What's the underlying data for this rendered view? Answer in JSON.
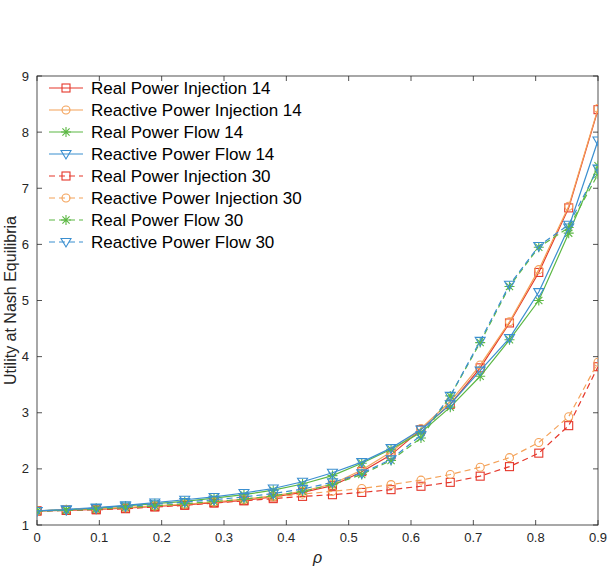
{
  "chart_data": {
    "type": "line",
    "x_label": "ρ",
    "y_label": "Utility at Nash Equilibria",
    "x": [
      0,
      0.047,
      0.095,
      0.142,
      0.189,
      0.237,
      0.284,
      0.332,
      0.379,
      0.426,
      0.474,
      0.521,
      0.568,
      0.616,
      0.663,
      0.711,
      0.758,
      0.805,
      0.853,
      0.9
    ],
    "xlim": [
      0,
      0.9
    ],
    "xticks": [
      0,
      0.1,
      0.2,
      0.3,
      0.4,
      0.5,
      0.6,
      0.7,
      0.8,
      0.9
    ],
    "ylim": [
      1,
      9
    ],
    "yticks": [
      1,
      2,
      3,
      4,
      5,
      6,
      7,
      8,
      9
    ],
    "grid": false,
    "legend": "top-left",
    "series": [
      {
        "name": "Real Power Injection 14",
        "color": "#e5372b",
        "marker": "square",
        "line_style": "solid",
        "values": [
          1.25,
          1.26,
          1.28,
          1.3,
          1.33,
          1.36,
          1.4,
          1.44,
          1.5,
          1.58,
          1.7,
          1.95,
          2.25,
          2.7,
          3.15,
          3.8,
          4.6,
          5.5,
          6.65,
          8.4
        ]
      },
      {
        "name": "Reactive Power Injection 14",
        "color": "#f4a259",
        "marker": "circle",
        "line_style": "solid",
        "values": [
          1.25,
          1.27,
          1.29,
          1.31,
          1.34,
          1.37,
          1.41,
          1.46,
          1.52,
          1.6,
          1.73,
          1.98,
          2.3,
          2.72,
          3.2,
          3.85,
          4.62,
          5.55,
          6.68,
          8.42
        ]
      },
      {
        "name": "Real Power Flow 14",
        "color": "#5cb844",
        "marker": "star",
        "line_style": "solid",
        "values": [
          1.25,
          1.27,
          1.3,
          1.34,
          1.38,
          1.42,
          1.48,
          1.54,
          1.62,
          1.73,
          1.88,
          2.1,
          2.35,
          2.65,
          3.1,
          3.65,
          4.3,
          5.0,
          6.2,
          7.4
        ]
      },
      {
        "name": "Reactive Power Flow 14",
        "color": "#3b8fd0",
        "marker": "triangle",
        "line_style": "solid",
        "values": [
          1.25,
          1.28,
          1.31,
          1.35,
          1.4,
          1.45,
          1.5,
          1.57,
          1.65,
          1.77,
          1.93,
          2.12,
          2.37,
          2.7,
          3.15,
          3.75,
          4.33,
          5.15,
          6.3,
          7.85
        ]
      },
      {
        "name": "Real Power Injection 30",
        "color": "#e5372b",
        "marker": "square",
        "line_style": "dashed",
        "values": [
          1.25,
          1.26,
          1.27,
          1.29,
          1.32,
          1.35,
          1.39,
          1.43,
          1.47,
          1.51,
          1.54,
          1.58,
          1.63,
          1.69,
          1.76,
          1.87,
          2.04,
          2.28,
          2.77,
          3.82
        ]
      },
      {
        "name": "Reactive Power Injection 30",
        "color": "#f4a259",
        "marker": "circle",
        "line_style": "dashed",
        "values": [
          1.25,
          1.27,
          1.29,
          1.31,
          1.34,
          1.37,
          1.41,
          1.45,
          1.5,
          1.55,
          1.6,
          1.65,
          1.72,
          1.8,
          1.9,
          2.03,
          2.2,
          2.47,
          2.93,
          3.9
        ]
      },
      {
        "name": "Real Power Flow 30",
        "color": "#5cb844",
        "marker": "star",
        "line_style": "dashed",
        "values": [
          1.25,
          1.26,
          1.28,
          1.31,
          1.34,
          1.38,
          1.42,
          1.46,
          1.52,
          1.6,
          1.72,
          1.9,
          2.15,
          2.55,
          3.3,
          4.25,
          5.25,
          5.95,
          6.3,
          7.25
        ]
      },
      {
        "name": "Reactive Power Flow 30",
        "color": "#3b8fd0",
        "marker": "triangle",
        "line_style": "dashed",
        "values": [
          1.25,
          1.27,
          1.3,
          1.33,
          1.37,
          1.41,
          1.45,
          1.5,
          1.56,
          1.64,
          1.76,
          1.92,
          2.17,
          2.6,
          3.3,
          4.28,
          5.28,
          5.97,
          6.35,
          7.35
        ]
      }
    ]
  }
}
